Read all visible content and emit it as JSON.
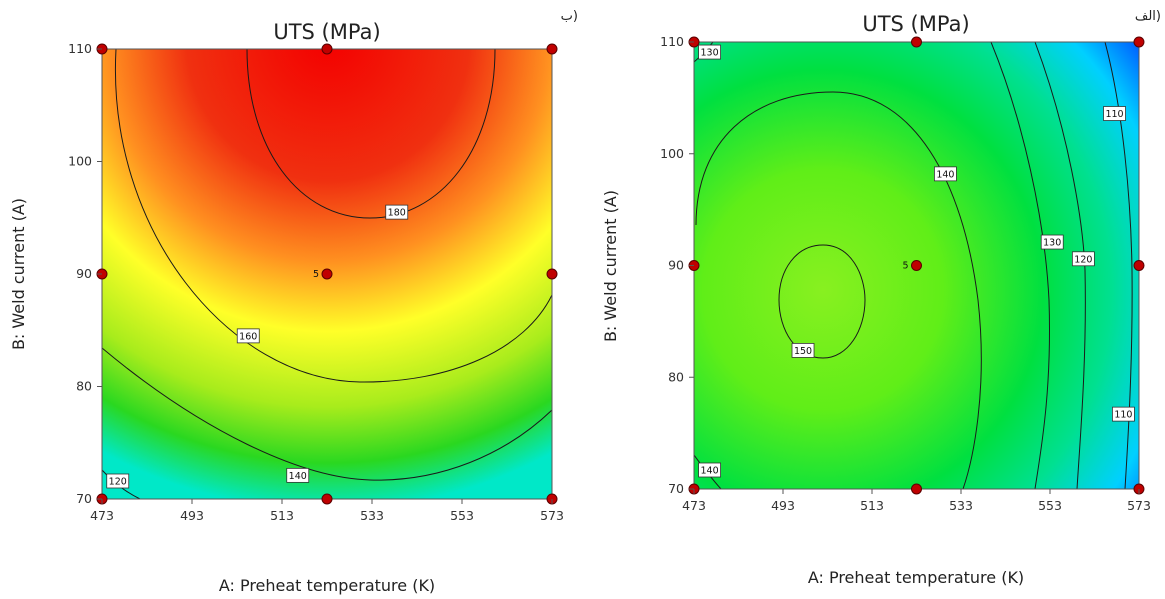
{
  "chart_data": [
    {
      "type": "contour",
      "panel_tag": "ب)",
      "title": "UTS (MPa)",
      "xlabel": "A: Preheat temperature (K)",
      "ylabel": "B: Weld current (A)",
      "xlim": [
        473,
        573
      ],
      "ylim": [
        70,
        110
      ],
      "xticks": [
        "473",
        "493",
        "513",
        "533",
        "553",
        "573"
      ],
      "yticks": [
        "70",
        "80",
        "90",
        "100",
        "110"
      ],
      "colormap": [
        "#00e8c8",
        "#2ad820",
        "#a8ec1c",
        "#ffff28",
        "#ff9020",
        "#f03010",
        "#f40000"
      ],
      "colors": {
        "point": "#c00000",
        "contour_line": "#1a1a1a"
      },
      "contour_labels": [
        {
          "text": "180",
          "x": 538.5,
          "y": 95.5
        },
        {
          "text": "160",
          "x": 505.5,
          "y": 84.5
        },
        {
          "text": "140",
          "x": 516.5,
          "y": 72.1
        },
        {
          "text": "120",
          "x": 476.5,
          "y": 71.6
        }
      ],
      "design_points": [
        {
          "x": 473,
          "y": 110
        },
        {
          "x": 523,
          "y": 110
        },
        {
          "x": 573,
          "y": 110
        },
        {
          "x": 473,
          "y": 90
        },
        {
          "x": 523,
          "y": 90,
          "label": "5"
        },
        {
          "x": 573,
          "y": 90
        },
        {
          "x": 473,
          "y": 70
        },
        {
          "x": 523,
          "y": 70
        },
        {
          "x": 573,
          "y": 70
        }
      ]
    },
    {
      "type": "contour",
      "panel_tag": "الف)",
      "title": "UTS (MPa)",
      "xlabel": "A: Preheat temperature (K)",
      "ylabel": "B: Weld current (A)",
      "xlim": [
        473,
        573
      ],
      "ylim": [
        70,
        110
      ],
      "xticks": [
        "473",
        "493",
        "513",
        "533",
        "553",
        "573"
      ],
      "yticks": [
        "70",
        "80",
        "90",
        "100",
        "110"
      ],
      "colormap": [
        "#0060ff",
        "#00d0ff",
        "#00e090",
        "#00e040",
        "#60ee18",
        "#88f020"
      ],
      "colors": {
        "point": "#c00000",
        "contour_line": "#1a1a1a"
      },
      "contour_labels": [
        {
          "text": "130",
          "x": 476.5,
          "y": 109.1
        },
        {
          "text": "110",
          "x": 567.5,
          "y": 103.6
        },
        {
          "text": "140",
          "x": 529.5,
          "y": 98.2
        },
        {
          "text": "130",
          "x": 553.5,
          "y": 92.1
        },
        {
          "text": "120",
          "x": 560.5,
          "y": 90.6
        },
        {
          "text": "150",
          "x": 497.5,
          "y": 82.4
        },
        {
          "text": "110",
          "x": 569.5,
          "y": 76.7
        },
        {
          "text": "140",
          "x": 476.5,
          "y": 71.7
        }
      ],
      "design_points": [
        {
          "x": 473,
          "y": 110
        },
        {
          "x": 523,
          "y": 110
        },
        {
          "x": 573,
          "y": 110
        },
        {
          "x": 473,
          "y": 90
        },
        {
          "x": 523,
          "y": 90,
          "label": "5"
        },
        {
          "x": 573,
          "y": 90
        },
        {
          "x": 473,
          "y": 70
        },
        {
          "x": 523,
          "y": 70
        },
        {
          "x": 573,
          "y": 70
        }
      ]
    }
  ]
}
